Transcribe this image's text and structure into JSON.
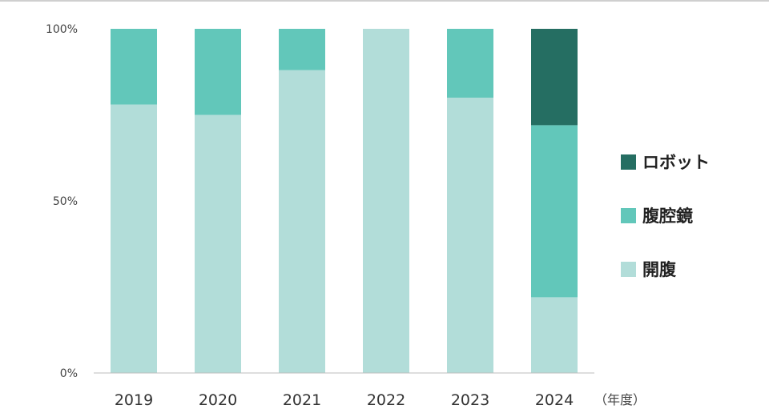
{
  "chart_data": {
    "type": "bar",
    "stacked": true,
    "categories": [
      "2019",
      "2020",
      "2021",
      "2022",
      "2023",
      "2024"
    ],
    "x_unit_label": "（年度）",
    "ylim": [
      0,
      100
    ],
    "y_ticks": [
      "0%",
      "50%",
      "100%"
    ],
    "grid": false,
    "legend_position": "right",
    "series": [
      {
        "name": "開腹",
        "color": "#b2ddd9",
        "values": [
          78,
          75,
          88,
          100,
          80,
          22
        ]
      },
      {
        "name": "腹腔鏡",
        "color": "#62c7ba",
        "values": [
          22,
          25,
          12,
          0,
          20,
          50
        ]
      },
      {
        "name": "ロボット",
        "color": "#256e62",
        "values": [
          0,
          0,
          0,
          0,
          0,
          28
        ]
      }
    ]
  }
}
